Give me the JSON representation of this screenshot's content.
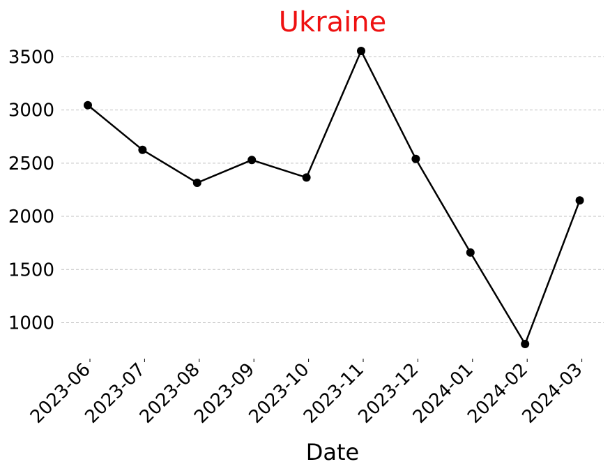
{
  "chart_data": {
    "type": "line",
    "title": "Ukraine",
    "xlabel": "Date",
    "ylabel": "",
    "x": [
      "2023-06",
      "2023-07",
      "2023-08",
      "2023-09",
      "2023-10",
      "2023-11",
      "2023-12",
      "2024-01",
      "2024-02",
      "2024-03"
    ],
    "series": [
      {
        "values": [
          3045,
          2625,
          2315,
          2530,
          2365,
          3555,
          2540,
          1660,
          800,
          2150
        ]
      }
    ],
    "yticks": [
      1000,
      1500,
      2000,
      2500,
      3000,
      3500
    ],
    "ylim": [
      700,
      3750
    ],
    "grid": "horizontal dashed",
    "legend": "none",
    "colors": {
      "title": "#ee1111",
      "series": "#000000",
      "grid": "#c0c0c0"
    }
  }
}
